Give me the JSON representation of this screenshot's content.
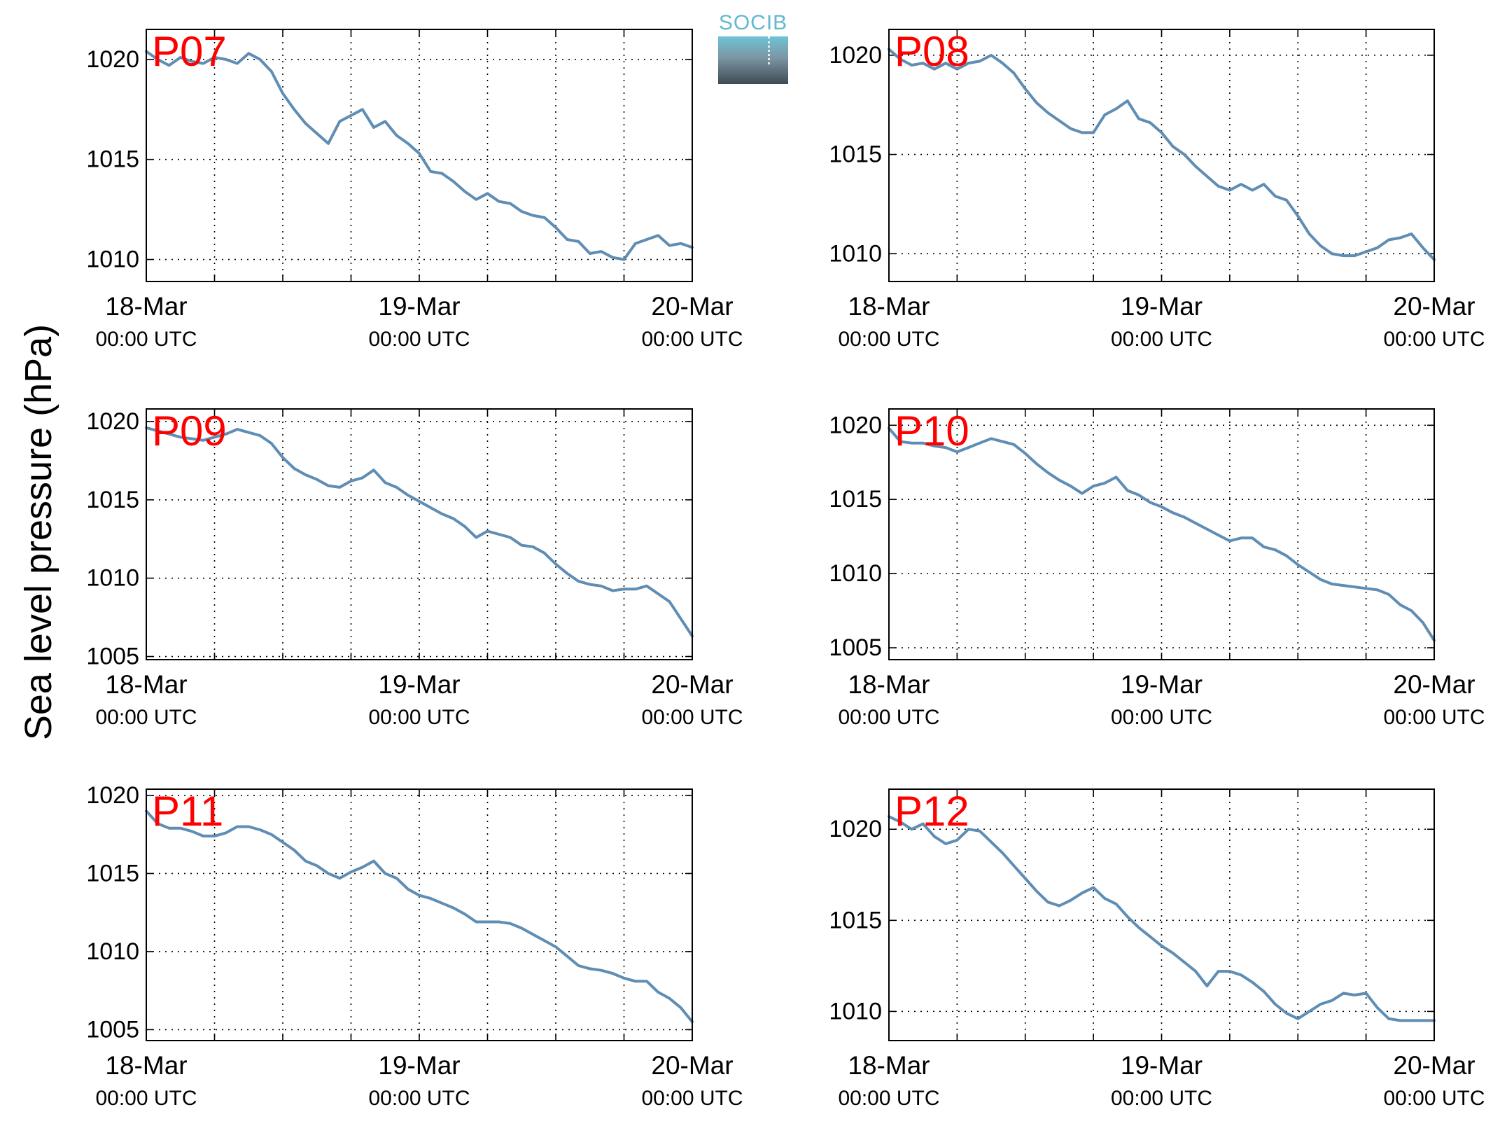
{
  "figure": {
    "ylabel": "Sea level pressure (hPa)",
    "logo_text": "SOCIB"
  },
  "colors": {
    "line": "#5f8db3",
    "panel_label": "#ff0000"
  },
  "chart_data": [
    {
      "type": "line",
      "panel": "P07",
      "ylim": [
        1008.9,
        1021.5
      ],
      "yticks": [
        1010,
        1015,
        1020
      ],
      "xlim": [
        0,
        48
      ],
      "xticks": [
        [
          "18-Mar",
          "00:00 UTC"
        ],
        [
          "19-Mar",
          "00:00 UTC"
        ],
        [
          "20-Mar",
          "00:00 UTC"
        ]
      ],
      "x_major_ticks_hours": [
        0,
        24,
        48
      ],
      "x_grid_hours": [
        6,
        12,
        18,
        24,
        30,
        36,
        42
      ],
      "grid": true,
      "x": [
        0,
        1,
        2,
        3,
        4,
        5,
        6,
        7,
        8,
        9,
        10,
        11,
        12,
        13,
        14,
        15,
        16,
        17,
        18,
        19,
        20,
        21,
        22,
        23,
        24,
        25,
        26,
        27,
        28,
        29,
        30,
        31,
        32,
        33,
        34,
        35,
        36,
        37,
        38,
        39,
        40,
        41,
        42,
        43,
        44,
        45,
        46,
        47,
        48
      ],
      "y": [
        1020.4,
        1020.0,
        1019.7,
        1020.1,
        1019.9,
        1019.8,
        1020.1,
        1020.0,
        1019.8,
        1020.3,
        1020.0,
        1019.4,
        1018.3,
        1017.5,
        1016.8,
        1016.3,
        1015.8,
        1016.9,
        1017.2,
        1017.5,
        1016.6,
        1016.9,
        1016.2,
        1015.8,
        1015.3,
        1014.4,
        1014.3,
        1013.9,
        1013.4,
        1013.0,
        1013.3,
        1012.9,
        1012.8,
        1012.4,
        1012.2,
        1012.1,
        1011.6,
        1011.0,
        1010.9,
        1010.3,
        1010.4,
        1010.1,
        1010.0,
        1010.8,
        1011.0,
        1011.2,
        1010.7,
        1010.8,
        1010.6
      ]
    },
    {
      "type": "line",
      "panel": "P08",
      "ylim": [
        1008.6,
        1021.3
      ],
      "yticks": [
        1010,
        1015,
        1020
      ],
      "xlim": [
        0,
        48
      ],
      "xticks": [
        [
          "18-Mar",
          "00:00 UTC"
        ],
        [
          "19-Mar",
          "00:00 UTC"
        ],
        [
          "20-Mar",
          "00:00 UTC"
        ]
      ],
      "x_major_ticks_hours": [
        0,
        24,
        48
      ],
      "x_grid_hours": [
        6,
        12,
        18,
        24,
        30,
        36,
        42
      ],
      "grid": true,
      "x": [
        0,
        1,
        2,
        3,
        4,
        5,
        6,
        7,
        8,
        9,
        10,
        11,
        12,
        13,
        14,
        15,
        16,
        17,
        18,
        19,
        20,
        21,
        22,
        23,
        24,
        25,
        26,
        27,
        28,
        29,
        30,
        31,
        32,
        33,
        34,
        35,
        36,
        37,
        38,
        39,
        40,
        41,
        42,
        43,
        44,
        45,
        46,
        47,
        48
      ],
      "y": [
        1020.3,
        1019.8,
        1019.5,
        1019.6,
        1019.3,
        1019.6,
        1019.3,
        1019.6,
        1019.7,
        1020.0,
        1019.6,
        1019.1,
        1018.3,
        1017.6,
        1017.1,
        1016.7,
        1016.3,
        1016.1,
        1016.1,
        1017.0,
        1017.3,
        1017.7,
        1016.8,
        1016.6,
        1016.1,
        1015.4,
        1015.0,
        1014.4,
        1013.9,
        1013.4,
        1013.2,
        1013.5,
        1013.2,
        1013.5,
        1012.9,
        1012.7,
        1011.9,
        1011.0,
        1010.4,
        1010.0,
        1009.9,
        1009.9,
        1010.1,
        1010.3,
        1010.7,
        1010.8,
        1011.0,
        1010.3,
        1009.7
      ]
    },
    {
      "type": "line",
      "panel": "P09",
      "ylim": [
        1004.8,
        1020.8
      ],
      "yticks": [
        1005,
        1010,
        1015,
        1020
      ],
      "xlim": [
        0,
        48
      ],
      "xticks": [
        [
          "18-Mar",
          "00:00 UTC"
        ],
        [
          "19-Mar",
          "00:00 UTC"
        ],
        [
          "20-Mar",
          "00:00 UTC"
        ]
      ],
      "x_major_ticks_hours": [
        0,
        24,
        48
      ],
      "x_grid_hours": [
        6,
        12,
        18,
        24,
        30,
        36,
        42
      ],
      "grid": true,
      "x": [
        0,
        1,
        2,
        3,
        4,
        5,
        6,
        7,
        8,
        9,
        10,
        11,
        12,
        13,
        14,
        15,
        16,
        17,
        18,
        19,
        20,
        21,
        22,
        23,
        24,
        25,
        26,
        27,
        28,
        29,
        30,
        31,
        32,
        33,
        34,
        35,
        36,
        37,
        38,
        39,
        40,
        41,
        42,
        43,
        44,
        45,
        46,
        47,
        48
      ],
      "y": [
        1019.6,
        1019.4,
        1019.2,
        1019.0,
        1018.9,
        1018.8,
        1019.0,
        1019.2,
        1019.5,
        1019.3,
        1019.1,
        1018.6,
        1017.7,
        1017.0,
        1016.6,
        1016.3,
        1015.9,
        1015.8,
        1016.2,
        1016.4,
        1016.9,
        1016.1,
        1015.8,
        1015.3,
        1014.9,
        1014.5,
        1014.1,
        1013.8,
        1013.3,
        1012.6,
        1013.0,
        1012.8,
        1012.6,
        1012.1,
        1012.0,
        1011.6,
        1010.9,
        1010.3,
        1009.8,
        1009.6,
        1009.5,
        1009.2,
        1009.3,
        1009.3,
        1009.5,
        1009.0,
        1008.5,
        1007.4,
        1006.3
      ]
    },
    {
      "type": "line",
      "panel": "P10",
      "ylim": [
        1004.2,
        1021.1
      ],
      "yticks": [
        1005,
        1010,
        1015,
        1020
      ],
      "xlim": [
        0,
        48
      ],
      "xticks": [
        [
          "18-Mar",
          "00:00 UTC"
        ],
        [
          "19-Mar",
          "00:00 UTC"
        ],
        [
          "20-Mar",
          "00:00 UTC"
        ]
      ],
      "x_major_ticks_hours": [
        0,
        24,
        48
      ],
      "x_grid_hours": [
        6,
        12,
        18,
        24,
        30,
        36,
        42
      ],
      "grid": true,
      "x": [
        0,
        1,
        2,
        3,
        4,
        5,
        6,
        7,
        8,
        9,
        10,
        11,
        12,
        13,
        14,
        15,
        16,
        17,
        18,
        19,
        20,
        21,
        22,
        23,
        24,
        25,
        26,
        27,
        28,
        29,
        30,
        31,
        32,
        33,
        34,
        35,
        36,
        37,
        38,
        39,
        40,
        41,
        42,
        43,
        44,
        45,
        46,
        47,
        48
      ],
      "y": [
        1019.8,
        1018.9,
        1018.8,
        1018.8,
        1018.6,
        1018.5,
        1018.2,
        1018.5,
        1018.8,
        1019.1,
        1018.9,
        1018.7,
        1018.1,
        1017.4,
        1016.8,
        1016.3,
        1015.9,
        1015.4,
        1015.9,
        1016.1,
        1016.5,
        1015.6,
        1015.3,
        1014.8,
        1014.5,
        1014.1,
        1013.8,
        1013.4,
        1013.0,
        1012.6,
        1012.2,
        1012.4,
        1012.4,
        1011.8,
        1011.6,
        1011.2,
        1010.6,
        1010.1,
        1009.6,
        1009.3,
        1009.2,
        1009.1,
        1009.0,
        1008.9,
        1008.6,
        1007.9,
        1007.5,
        1006.7,
        1005.5
      ]
    },
    {
      "type": "line",
      "panel": "P11",
      "ylim": [
        1004.3,
        1020.4
      ],
      "yticks": [
        1005,
        1010,
        1015,
        1020
      ],
      "xlim": [
        0,
        48
      ],
      "xticks": [
        [
          "18-Mar",
          "00:00 UTC"
        ],
        [
          "19-Mar",
          "00:00 UTC"
        ],
        [
          "20-Mar",
          "00:00 UTC"
        ]
      ],
      "x_major_ticks_hours": [
        0,
        24,
        48
      ],
      "x_grid_hours": [
        6,
        12,
        18,
        24,
        30,
        36,
        42
      ],
      "grid": true,
      "x": [
        0,
        1,
        2,
        3,
        4,
        5,
        6,
        7,
        8,
        9,
        10,
        11,
        12,
        13,
        14,
        15,
        16,
        17,
        18,
        19,
        20,
        21,
        22,
        23,
        24,
        25,
        26,
        27,
        28,
        29,
        30,
        31,
        32,
        33,
        34,
        35,
        36,
        37,
        38,
        39,
        40,
        41,
        42,
        43,
        44,
        45,
        46,
        47,
        48
      ],
      "y": [
        1019.0,
        1018.2,
        1017.9,
        1017.9,
        1017.7,
        1017.4,
        1017.4,
        1017.6,
        1018.0,
        1018.0,
        1017.8,
        1017.5,
        1017.0,
        1016.5,
        1015.8,
        1015.5,
        1015.0,
        1014.7,
        1015.1,
        1015.4,
        1015.8,
        1015.0,
        1014.7,
        1014.0,
        1013.6,
        1013.4,
        1013.1,
        1012.8,
        1012.4,
        1011.9,
        1011.9,
        1011.9,
        1011.8,
        1011.5,
        1011.1,
        1010.7,
        1010.3,
        1009.7,
        1009.1,
        1008.9,
        1008.8,
        1008.6,
        1008.3,
        1008.1,
        1008.1,
        1007.4,
        1007.0,
        1006.4,
        1005.5
      ]
    },
    {
      "type": "line",
      "panel": "P12",
      "ylim": [
        1008.4,
        1022.2
      ],
      "yticks": [
        1010,
        1015,
        1020
      ],
      "xlim": [
        0,
        48
      ],
      "xticks": [
        [
          "18-Mar",
          "00:00 UTC"
        ],
        [
          "19-Mar",
          "00:00 UTC"
        ],
        [
          "20-Mar",
          "00:00 UTC"
        ]
      ],
      "x_major_ticks_hours": [
        0,
        24,
        48
      ],
      "x_grid_hours": [
        6,
        12,
        18,
        24,
        30,
        36,
        42
      ],
      "grid": true,
      "x": [
        0,
        1,
        2,
        3,
        4,
        5,
        6,
        7,
        8,
        9,
        10,
        11,
        12,
        13,
        14,
        15,
        16,
        17,
        18,
        19,
        20,
        21,
        22,
        23,
        24,
        25,
        26,
        27,
        28,
        29,
        30,
        31,
        32,
        33,
        34,
        35,
        36,
        37,
        38,
        39,
        40,
        41,
        42,
        43,
        44,
        45,
        46,
        47,
        48
      ],
      "y": [
        1020.7,
        1020.4,
        1020.0,
        1020.3,
        1019.6,
        1019.2,
        1019.4,
        1020.0,
        1019.9,
        1019.3,
        1018.7,
        1018.0,
        1017.3,
        1016.6,
        1016.0,
        1015.8,
        1016.1,
        1016.5,
        1016.8,
        1016.2,
        1015.9,
        1015.2,
        1014.6,
        1014.1,
        1013.6,
        1013.2,
        1012.7,
        1012.2,
        1011.4,
        1012.2,
        1012.2,
        1012.0,
        1011.6,
        1011.1,
        1010.4,
        1009.9,
        1009.6,
        1010.0,
        1010.4,
        1010.6,
        1011.0,
        1010.9,
        1011.0,
        1010.2,
        1009.6,
        1009.5,
        1009.5,
        1009.5,
        1009.5
      ]
    }
  ]
}
